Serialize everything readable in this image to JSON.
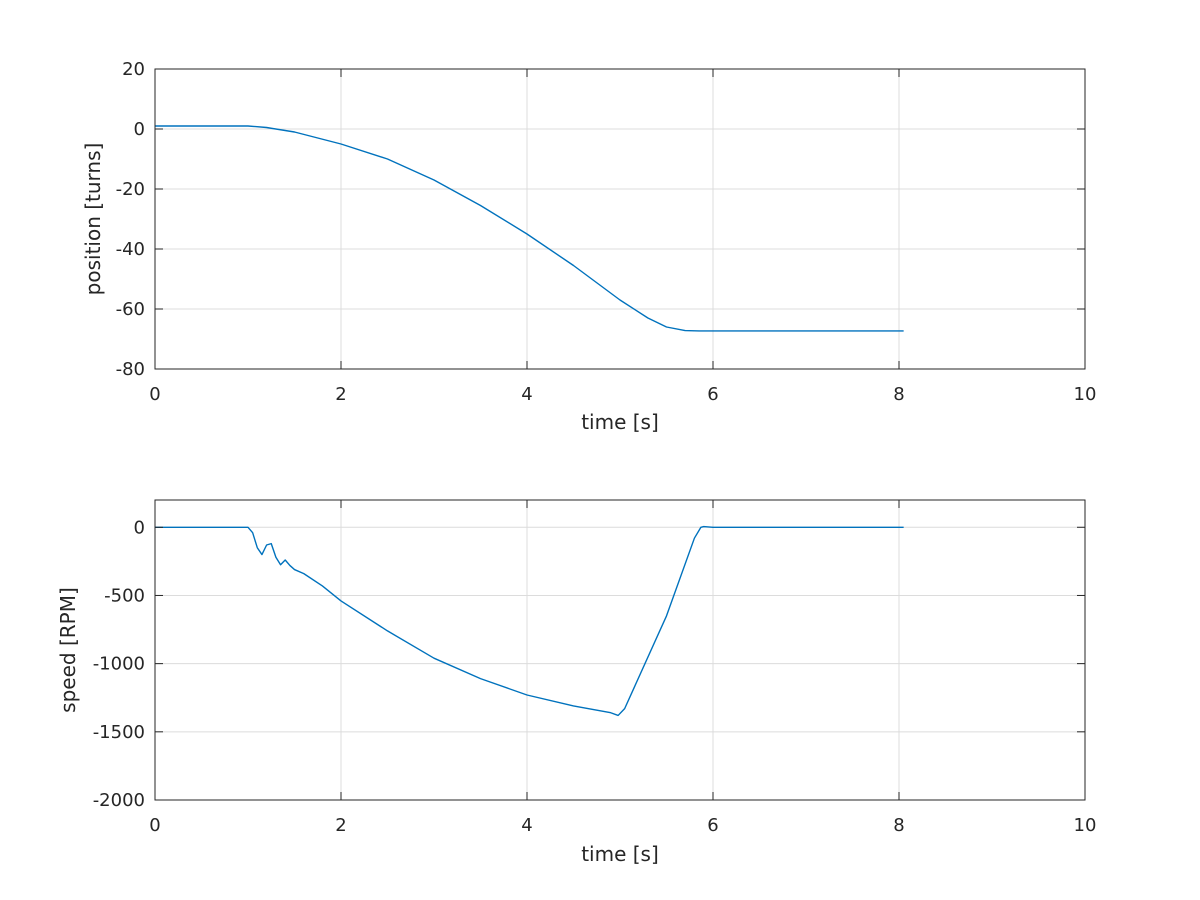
{
  "chart_data": [
    {
      "type": "line",
      "title": "",
      "xlabel": "time [s]",
      "ylabel": "position [turns]",
      "xlim": [
        0,
        10
      ],
      "ylim": [
        -80,
        20
      ],
      "xticks": [
        0,
        2,
        4,
        6,
        8,
        10
      ],
      "yticks": [
        -80,
        -60,
        -40,
        -20,
        0,
        20
      ],
      "grid": true,
      "series": [
        {
          "color": "#0072BD",
          "x": [
            0,
            1.0,
            1.2,
            1.5,
            2.0,
            2.5,
            3.0,
            3.5,
            4.0,
            4.5,
            5.0,
            5.3,
            5.5,
            5.7,
            5.85,
            6.0,
            7.0,
            8.05
          ],
          "y": [
            1,
            1,
            0.5,
            -1,
            -5,
            -10,
            -17,
            -25.5,
            -35,
            -45.5,
            -57,
            -63,
            -66,
            -67.2,
            -67.3,
            -67.3,
            -67.3,
            -67.3
          ]
        }
      ]
    },
    {
      "type": "line",
      "title": "",
      "xlabel": "time [s]",
      "ylabel": "speed [RPM]",
      "xlim": [
        0,
        10
      ],
      "ylim": [
        -2000,
        200
      ],
      "xticks": [
        0,
        2,
        4,
        6,
        8,
        10
      ],
      "yticks": [
        -2000,
        -1500,
        -1000,
        -500,
        0
      ],
      "grid": true,
      "series": [
        {
          "color": "#0072BD",
          "x": [
            0,
            1.0,
            1.05,
            1.1,
            1.15,
            1.2,
            1.25,
            1.3,
            1.35,
            1.4,
            1.45,
            1.5,
            1.6,
            1.8,
            2.0,
            2.5,
            3.0,
            3.5,
            4.0,
            4.5,
            4.9,
            4.98,
            5.05,
            5.5,
            5.8,
            5.87,
            5.9,
            6.0,
            7.0,
            8.05
          ],
          "y": [
            0,
            0,
            -40,
            -150,
            -200,
            -130,
            -120,
            -220,
            -275,
            -240,
            -280,
            -310,
            -340,
            -430,
            -540,
            -760,
            -960,
            -1110,
            -1230,
            -1310,
            -1360,
            -1380,
            -1330,
            -650,
            -80,
            0,
            5,
            0,
            0,
            0
          ]
        }
      ]
    }
  ]
}
